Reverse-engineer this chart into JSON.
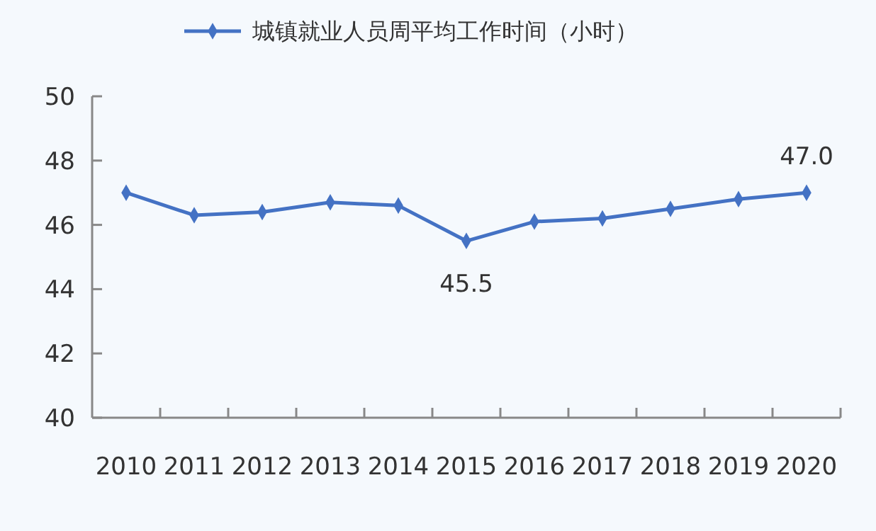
{
  "chart_data": {
    "type": "line",
    "categories": [
      "2010",
      "2011",
      "2012",
      "2013",
      "2014",
      "2015",
      "2016",
      "2017",
      "2018",
      "2019",
      "2020"
    ],
    "series": [
      {
        "name": "城镇就业人员周平均工作时间（小时）",
        "color": "#4472c4",
        "values": [
          47.0,
          46.3,
          46.4,
          46.7,
          46.6,
          45.5,
          46.1,
          46.2,
          46.5,
          46.8,
          47.0
        ],
        "value_labels": [
          null,
          null,
          null,
          null,
          null,
          "45.5",
          null,
          null,
          null,
          null,
          "47.0"
        ]
      }
    ],
    "ylim": [
      40,
      50
    ],
    "yticks": [
      40,
      42,
      44,
      46,
      48,
      50
    ],
    "marker": "diamond",
    "legend": "top",
    "grid": false
  }
}
